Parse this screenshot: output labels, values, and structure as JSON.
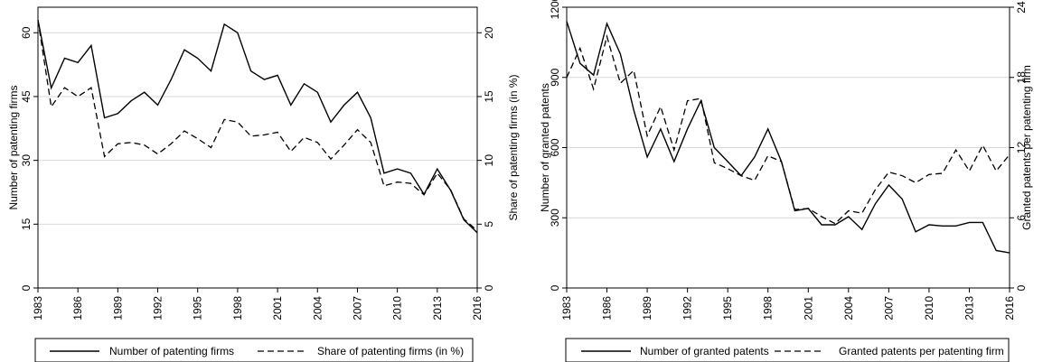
{
  "chart_data": [
    {
      "type": "line",
      "ylabel": "Number of patenting firms",
      "ylabel_right": "Share of patenting firms (in %)",
      "x_ticks": [
        "1983",
        "1986",
        "1989",
        "1992",
        "1995",
        "1998",
        "2001",
        "2004",
        "2007",
        "2010",
        "2013",
        "2016"
      ],
      "y_left_ticks": [
        "0",
        "15",
        "30",
        "45",
        "60"
      ],
      "y_right_ticks": [
        "0",
        "5",
        "10",
        "15",
        "20"
      ],
      "ylim_left": [
        0,
        66
      ],
      "ylim_right": [
        0,
        22
      ],
      "xlim": [
        1983,
        2016
      ],
      "grid": "horizontal",
      "legend_position": "bottom",
      "series": [
        {
          "name": "Number of patenting firms",
          "axis": "left",
          "style": "solid",
          "x": [
            1983,
            1984,
            1985,
            1986,
            1987,
            1988,
            1989,
            1990,
            1991,
            1992,
            1993,
            1994,
            1995,
            1996,
            1997,
            1998,
            1999,
            2000,
            2001,
            2002,
            2003,
            2004,
            2005,
            2006,
            2007,
            2008,
            2009,
            2010,
            2011,
            2012,
            2013,
            2014,
            2015,
            2016
          ],
          "values": [
            63,
            47,
            54,
            53,
            57,
            40,
            41,
            44,
            46,
            43,
            49,
            56,
            54,
            51,
            62,
            60,
            51,
            49,
            50,
            43,
            48,
            46,
            39,
            43,
            46,
            40,
            27,
            28,
            27,
            22,
            28,
            23,
            16,
            13
          ]
        },
        {
          "name": "Share of patenting firms (in %)",
          "axis": "right",
          "style": "dashed",
          "x": [
            1983,
            1984,
            1985,
            1986,
            1987,
            1988,
            1989,
            1990,
            1991,
            1992,
            1993,
            1994,
            1995,
            1996,
            1997,
            1998,
            1999,
            2000,
            2001,
            2002,
            2003,
            2004,
            2005,
            2006,
            2007,
            2008,
            2009,
            2010,
            2011,
            2012,
            2013,
            2014,
            2015,
            2016
          ],
          "values": [
            21,
            14.2,
            15.7,
            15,
            15.7,
            10.3,
            11.3,
            11.4,
            11.2,
            10.5,
            11.3,
            12.3,
            11.7,
            11,
            13.2,
            13,
            11.9,
            12,
            12.2,
            10.7,
            11.8,
            11.4,
            10.1,
            11.2,
            12.4,
            11.4,
            8,
            8.3,
            8.2,
            7.3,
            9,
            7.7,
            5.4,
            4.5
          ]
        }
      ],
      "legend": [
        {
          "label": "Number of patenting firms",
          "style": "solid"
        },
        {
          "label": "Share of patenting firms (in %)",
          "style": "dashed"
        }
      ]
    },
    {
      "type": "line",
      "ylabel": "Number of granted patents",
      "ylabel_right": "Granted patents per patenting firm",
      "x_ticks": [
        "1983",
        "1986",
        "1989",
        "1992",
        "1995",
        "1998",
        "2001",
        "2004",
        "2007",
        "2010",
        "2013",
        "2016"
      ],
      "y_left_ticks": [
        "0",
        "300",
        "600",
        "900",
        "1200"
      ],
      "y_right_ticks": [
        "0",
        "6",
        "12",
        "18",
        "24"
      ],
      "ylim_left": [
        0,
        1200
      ],
      "ylim_right": [
        0,
        24
      ],
      "xlim": [
        1983,
        2016
      ],
      "grid": "horizontal",
      "legend_position": "bottom",
      "series": [
        {
          "name": "Number of granted patents",
          "axis": "left",
          "style": "solid",
          "x": [
            1983,
            1984,
            1985,
            1986,
            1987,
            1988,
            1989,
            1990,
            1991,
            1992,
            1993,
            1994,
            1995,
            1996,
            1997,
            1998,
            1999,
            2000,
            2001,
            2002,
            2003,
            2004,
            2005,
            2006,
            2007,
            2008,
            2009,
            2010,
            2011,
            2012,
            2013,
            2014,
            2015,
            2016
          ],
          "values": [
            1140,
            960,
            910,
            1130,
            1000,
            760,
            560,
            680,
            540,
            680,
            800,
            600,
            540,
            480,
            560,
            680,
            540,
            330,
            340,
            270,
            270,
            305,
            250,
            360,
            440,
            380,
            240,
            270,
            265,
            265,
            280,
            280,
            160,
            150
          ]
        },
        {
          "name": "Granted patents per patenting firm",
          "axis": "right",
          "style": "dashed",
          "x": [
            1983,
            1984,
            1985,
            1986,
            1987,
            1988,
            1989,
            1990,
            1991,
            1992,
            1993,
            1994,
            1995,
            1996,
            1997,
            1998,
            1999,
            2000,
            2001,
            2002,
            2003,
            2004,
            2005,
            2006,
            2007,
            2008,
            2009,
            2010,
            2011,
            2012,
            2013,
            2014,
            2015,
            2016
          ],
          "values": [
            18,
            20.5,
            17,
            21.5,
            17.5,
            18.6,
            13,
            15.5,
            11.8,
            16,
            16.2,
            10.7,
            10.2,
            9.6,
            9.2,
            11.3,
            10.8,
            6.7,
            6.8,
            6.1,
            5.5,
            6.6,
            6.4,
            8.4,
            9.9,
            9.6,
            9,
            9.7,
            9.8,
            11.8,
            10,
            12.2,
            10,
            11.4
          ]
        }
      ],
      "legend": [
        {
          "label": "Number of granted patents",
          "style": "solid"
        },
        {
          "label": "Granted patents per patenting firm",
          "style": "dashed"
        }
      ]
    }
  ]
}
